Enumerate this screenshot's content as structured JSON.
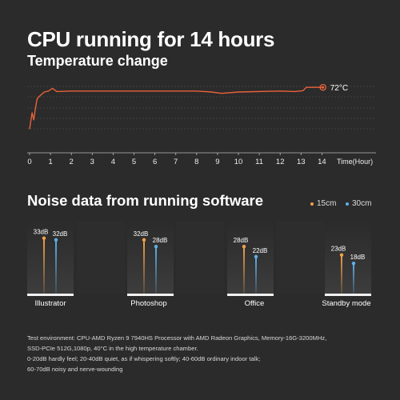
{
  "title": "CPU running for 14 hours",
  "subtitle": "Temperature change",
  "noise_title": "Noise data from running software",
  "legend": [
    {
      "label": "15cm",
      "color": "#f0a04b"
    },
    {
      "label": "30cm",
      "color": "#5fb0e8"
    }
  ],
  "footnote": [
    "Test environment: CPU-AMD Ryzen 9 7940HS Processor with AMD Radeon Graphics,  Memory-16G-3200MHz,",
    "SSD-PCIe 512G,1080p, 40°C in the high temperature chamber.",
    "0-20dB hardly feel; 20-40dB quiet, as if whispering softly; 40-60dB ordinary indoor talk;",
    "60-70dB noisy and nerve-wounding"
  ],
  "chart_data": [
    {
      "type": "line",
      "title": "Temperature change",
      "xlabel": "Time(Hour)",
      "ylabel": "",
      "x_ticks": [
        "0",
        "1",
        "2",
        "3",
        "4",
        "5",
        "6",
        "7",
        "8",
        "9",
        "10",
        "11",
        "12",
        "13",
        "14"
      ],
      "xlim": [
        0,
        15.2
      ],
      "series": [
        {
          "color": "#e8623a",
          "points": [
            [
              0.0,
              54
            ],
            [
              0.05,
              57
            ],
            [
              0.12,
              61
            ],
            [
              0.2,
              58
            ],
            [
              0.28,
              63
            ],
            [
              0.36,
              67
            ],
            [
              0.45,
              68
            ],
            [
              0.55,
              68.8
            ],
            [
              0.7,
              70
            ],
            [
              0.9,
              70.4
            ],
            [
              1.1,
              71.6
            ],
            [
              1.3,
              70.2
            ],
            [
              2,
              70.4
            ],
            [
              4,
              70.4
            ],
            [
              6,
              70.4
            ],
            [
              8,
              70.4
            ],
            [
              8.7,
              70
            ],
            [
              9.2,
              69.4
            ],
            [
              10,
              70
            ],
            [
              12,
              70.4
            ],
            [
              12.7,
              70.2
            ],
            [
              13.1,
              70.6
            ],
            [
              13.25,
              72
            ],
            [
              14.05,
              72
            ]
          ]
        }
      ],
      "end_label": "72°C",
      "grid": true
    },
    {
      "type": "bar",
      "title": "Noise data from running software",
      "categories": [
        "Illustrator",
        "Photoshop",
        "Office",
        "Standby mode"
      ],
      "series": [
        {
          "name": "15cm",
          "values": [
            33,
            32,
            28,
            23
          ],
          "labels": [
            "33dB",
            "32dB",
            "28dB",
            "23dB"
          ]
        },
        {
          "name": "30cm",
          "values": [
            32,
            28,
            22,
            18
          ],
          "labels": [
            "32dB",
            "28dB",
            "22dB",
            "18dB"
          ]
        }
      ],
      "ylim": [
        0,
        40
      ]
    }
  ]
}
